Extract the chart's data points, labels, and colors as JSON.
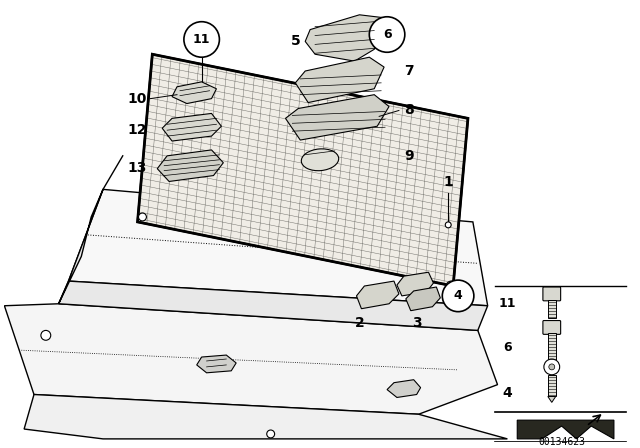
{
  "bg_color": "#ffffff",
  "fig_width": 6.4,
  "fig_height": 4.48,
  "dpi": 100,
  "diagram_id": "00134623",
  "line_color": "#000000",
  "text_color": "#000000",
  "shelf_color": "#f5f5f5",
  "net_color": "#e8e5de",
  "net_line_color": "#555550"
}
